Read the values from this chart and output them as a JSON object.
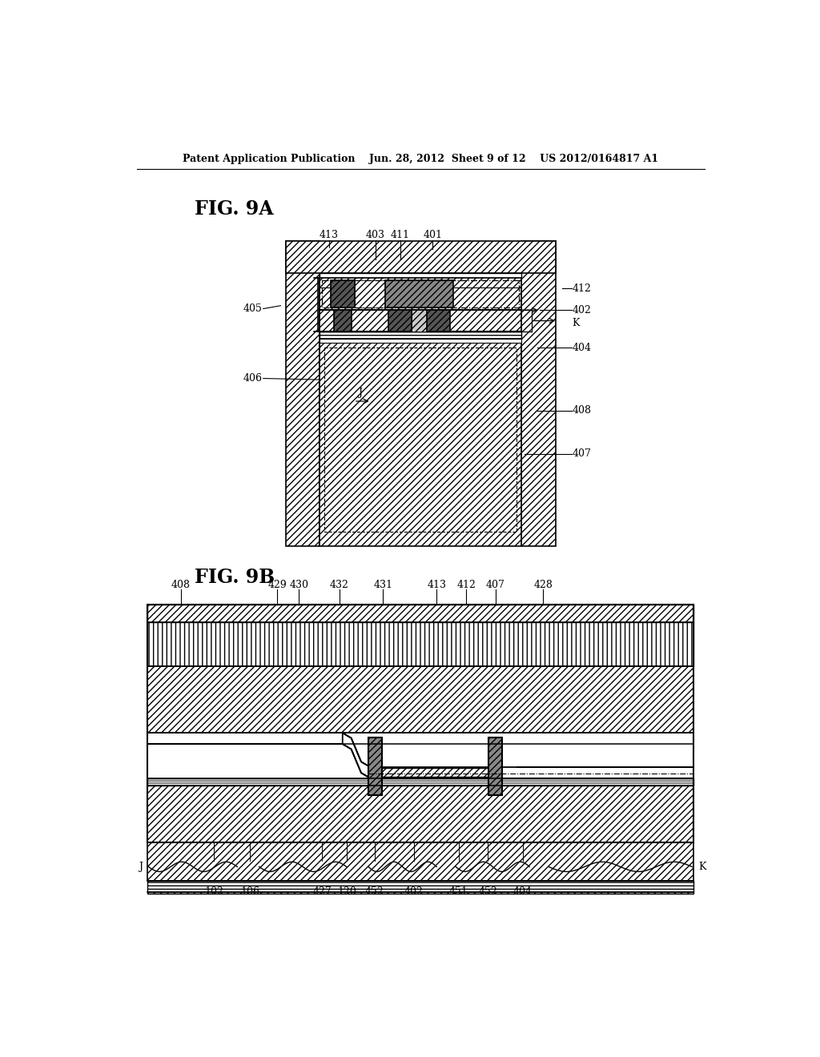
{
  "title": "Patent Application Publication    Jun. 28, 2012  Sheet 9 of 12    US 2012/0164817 A1",
  "fig9a_label": "FIG. 9A",
  "fig9b_label": "FIG. 9B",
  "bg_color": "#ffffff"
}
